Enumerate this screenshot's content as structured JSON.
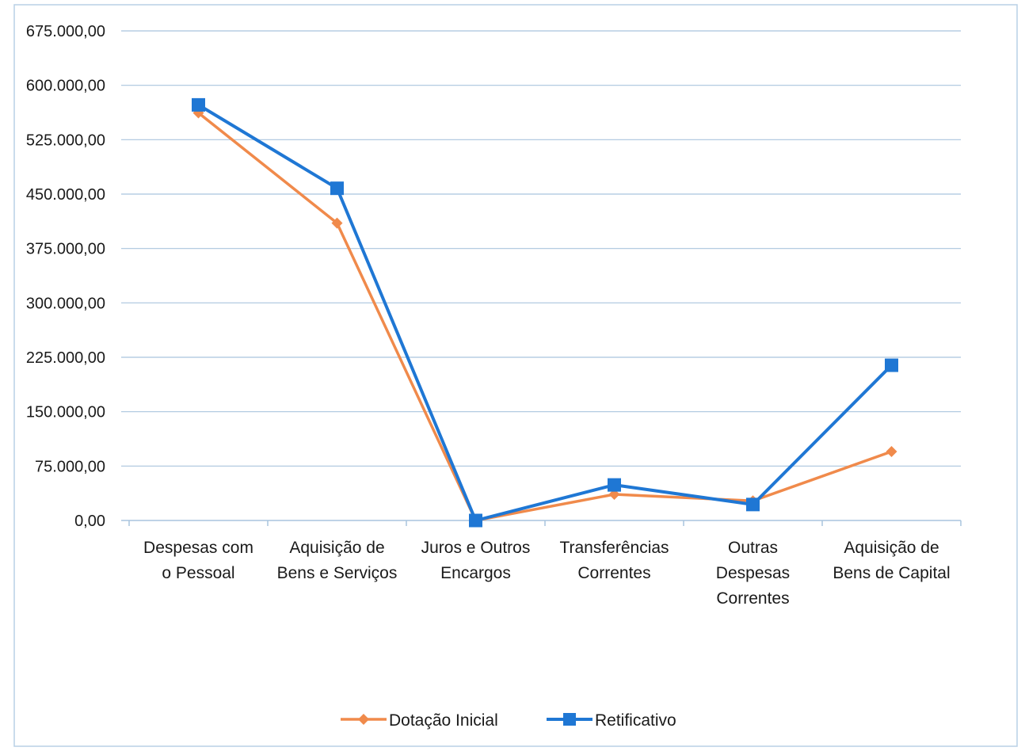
{
  "chart_data": {
    "type": "line",
    "title": "",
    "xlabel": "",
    "ylabel": "",
    "categories": [
      [
        "Despesas com",
        "o Pessoal"
      ],
      [
        "Aquisição de",
        "Bens e Serviços"
      ],
      [
        "Juros e Outros",
        "Encargos"
      ],
      [
        "Transferências",
        "Correntes"
      ],
      [
        "Outras",
        "Despesas",
        "Correntes"
      ],
      [
        "Aquisição de",
        "Bens de Capital"
      ]
    ],
    "ylim": [
      0,
      675000
    ],
    "yticks": [
      0,
      75000,
      150000,
      225000,
      300000,
      375000,
      450000,
      525000,
      600000,
      675000
    ],
    "ytick_labels": [
      "0,00",
      "75.000,00",
      "150.000,00",
      "225.000,00",
      "300.000,00",
      "375.000,00",
      "450.000,00",
      "525.000,00",
      "600.000,00",
      "675.000,00"
    ],
    "grid": true,
    "legend_position": "bottom",
    "series": [
      {
        "name": "Dotação Inicial",
        "color": "#f08a4b",
        "marker": "diamond",
        "values": [
          562000,
          410000,
          0,
          36000,
          27000,
          95000
        ]
      },
      {
        "name": "Retificativo",
        "color": "#1f77d4",
        "marker": "square",
        "values": [
          573000,
          458000,
          0,
          49000,
          22000,
          214000
        ]
      }
    ],
    "colors": {
      "grid": "#a9c4de",
      "axis": "#a9c4de",
      "frame": "#b8d0e6"
    }
  }
}
